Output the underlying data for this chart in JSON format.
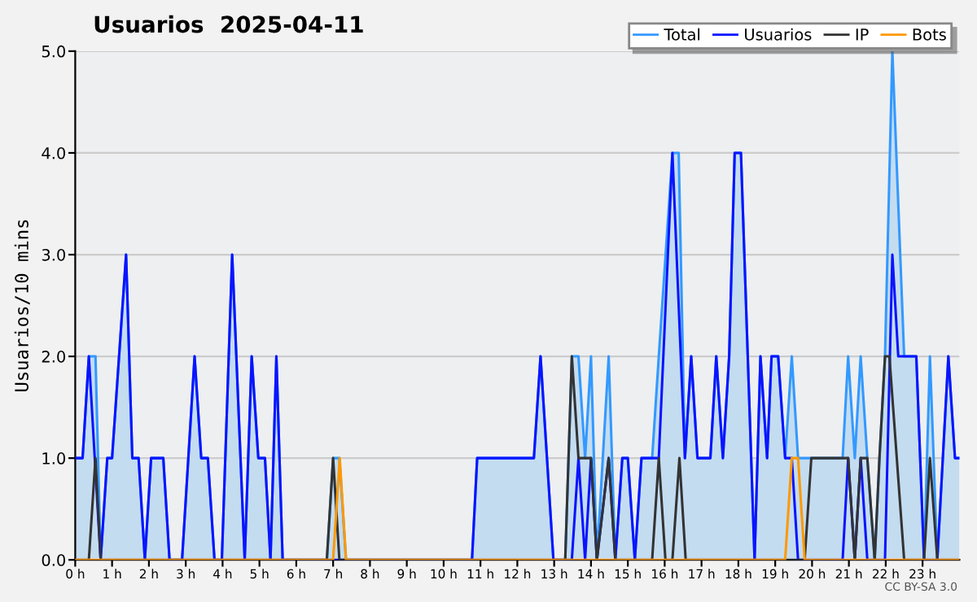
{
  "chart_data": {
    "type": "line",
    "title": "Usuarios  2025-04-11",
    "ylabel": "Usuarios/10 mins",
    "annotations": [
      "CC BY-SA 3.0"
    ],
    "xlim": [
      0,
      24
    ],
    "ylim": [
      0,
      5
    ],
    "xticks": [
      {
        "value": 0,
        "label": "0 h"
      },
      {
        "value": 1,
        "label": "1 h"
      },
      {
        "value": 2,
        "label": "2 h"
      },
      {
        "value": 3,
        "label": "3 h"
      },
      {
        "value": 4,
        "label": "4 h"
      },
      {
        "value": 5,
        "label": "5 h"
      },
      {
        "value": 6,
        "label": "6 h"
      },
      {
        "value": 7,
        "label": "7 h"
      },
      {
        "value": 8,
        "label": "8 h"
      },
      {
        "value": 9,
        "label": "9 h"
      },
      {
        "value": 10,
        "label": "10 h"
      },
      {
        "value": 11,
        "label": "11 h"
      },
      {
        "value": 12,
        "label": "12 h"
      },
      {
        "value": 13,
        "label": "13 h"
      },
      {
        "value": 14,
        "label": "14 h"
      },
      {
        "value": 15,
        "label": "15 h"
      },
      {
        "value": 16,
        "label": "16 h"
      },
      {
        "value": 17,
        "label": "17 h"
      },
      {
        "value": 18,
        "label": "18 h"
      },
      {
        "value": 19,
        "label": "19 h"
      },
      {
        "value": 20,
        "label": "20 h"
      },
      {
        "value": 21,
        "label": "21 h"
      },
      {
        "value": 22,
        "label": "22 h"
      },
      {
        "value": 23,
        "label": "23 h"
      }
    ],
    "yticks": [
      {
        "value": 0,
        "label": "0.0"
      },
      {
        "value": 1,
        "label": "1.0"
      },
      {
        "value": 2,
        "label": "2.0"
      },
      {
        "value": 3,
        "label": "3.0"
      },
      {
        "value": 4,
        "label": "4.0"
      },
      {
        "value": 5,
        "label": "5.0"
      }
    ],
    "grid": "y",
    "legend": "top right",
    "marker": "none",
    "line_style": "solid",
    "series": [
      {
        "name": "Total",
        "type": "area",
        "color": "#3399ff",
        "x": [
          0,
          0.2,
          0.37,
          0.55,
          0.69,
          0.87,
          1.0,
          1.38,
          1.55,
          1.72,
          1.89,
          2.06,
          2.39,
          2.56,
          2.9,
          3.24,
          3.42,
          3.6,
          3.78,
          3.98,
          4.26,
          4.6,
          4.79,
          4.97,
          5.15,
          5.3,
          5.46,
          5.63,
          6.83,
          7.0,
          7.17,
          7.35,
          10.77,
          10.91,
          12.45,
          12.63,
          12.98,
          13.3,
          13.48,
          13.66,
          13.84,
          14.0,
          14.16,
          14.48,
          14.66,
          14.85,
          15.0,
          15.19,
          15.37,
          15.66,
          15.84,
          16.21,
          16.38,
          16.55,
          16.72,
          16.89,
          17.24,
          17.4,
          17.58,
          17.75,
          17.9,
          18.07,
          18.44,
          18.6,
          18.78,
          18.9,
          19.08,
          19.27,
          19.45,
          19.62,
          20.83,
          20.98,
          21.16,
          21.32,
          21.5,
          21.7,
          21.83,
          21.98,
          22.18,
          22.5,
          22.83,
          23.04,
          23.2,
          23.4,
          23.7,
          23.88,
          24
        ],
        "values": [
          1,
          1,
          2,
          2,
          0,
          1,
          1,
          3,
          1,
          1,
          0,
          1,
          1,
          0,
          0,
          2,
          1,
          1,
          0,
          0,
          3,
          0,
          2,
          1,
          1,
          0,
          2,
          0,
          0,
          1,
          1,
          0,
          0,
          1,
          1,
          2,
          0,
          0,
          2,
          2,
          1,
          2,
          0,
          2,
          0,
          1,
          1,
          0,
          1,
          1,
          2,
          4,
          4,
          1,
          2,
          1,
          1,
          2,
          1,
          2,
          4,
          4,
          0,
          2,
          1,
          2,
          2,
          1,
          2,
          1,
          1,
          2,
          1,
          2,
          1,
          0,
          1,
          2,
          5,
          2,
          2,
          0,
          2,
          0,
          2,
          1,
          1
        ]
      },
      {
        "name": "Usuarios",
        "color": "#0a14ff",
        "x": [
          0,
          0.2,
          0.37,
          0.69,
          0.87,
          1.0,
          1.38,
          1.55,
          1.72,
          1.89,
          2.06,
          2.39,
          2.56,
          2.9,
          3.24,
          3.42,
          3.6,
          3.78,
          3.98,
          4.26,
          4.6,
          4.79,
          4.97,
          5.15,
          5.3,
          5.46,
          5.63,
          10.77,
          10.91,
          12.45,
          12.63,
          12.98,
          13.48,
          13.66,
          13.84,
          14.0,
          14.16,
          14.48,
          14.66,
          14.85,
          15.0,
          15.19,
          15.37,
          15.84,
          16.21,
          16.55,
          16.72,
          16.89,
          17.24,
          17.4,
          17.58,
          17.75,
          17.9,
          18.07,
          18.44,
          18.6,
          18.78,
          18.9,
          19.08,
          19.27,
          19.45,
          19.62,
          20.83,
          20.98,
          21.16,
          21.32,
          21.5,
          21.98,
          22.18,
          22.34,
          22.83,
          23.04,
          23.4,
          23.7,
          23.88,
          24
        ],
        "values": [
          1,
          1,
          2,
          0,
          1,
          1,
          3,
          1,
          1,
          0,
          1,
          1,
          0,
          0,
          2,
          1,
          1,
          0,
          0,
          3,
          0,
          2,
          1,
          1,
          0,
          2,
          0,
          0,
          1,
          1,
          2,
          0,
          0,
          1,
          0,
          1,
          0,
          1,
          0,
          1,
          1,
          0,
          1,
          1,
          4,
          1,
          2,
          1,
          1,
          2,
          1,
          2,
          4,
          4,
          0,
          2,
          1,
          2,
          2,
          1,
          1,
          0,
          0,
          1,
          0,
          1,
          0,
          0,
          3,
          2,
          2,
          0,
          0,
          2,
          1,
          1
        ]
      },
      {
        "name": "IP",
        "color": "#333333",
        "x": [
          0,
          0.37,
          0.55,
          0.69,
          6.83,
          7.0,
          7.17,
          13.3,
          13.48,
          13.66,
          14.0,
          14.16,
          14.48,
          14.66,
          15.66,
          15.84,
          16.02,
          16.21,
          16.4,
          16.57,
          19.8,
          19.98,
          20.98,
          21.16,
          21.32,
          21.5,
          21.7,
          21.83,
          21.98,
          22.1,
          22.5,
          23.04,
          23.2,
          23.4,
          24
        ],
        "values": [
          0,
          0,
          1,
          0,
          0,
          1,
          0,
          0,
          2,
          1,
          1,
          0,
          1,
          0,
          0,
          1,
          0,
          0,
          1,
          0,
          0,
          1,
          1,
          0,
          1,
          1,
          0,
          1,
          2,
          2,
          0,
          0,
          1,
          0,
          0
        ]
      },
      {
        "name": "Bots",
        "color": "#ff9900",
        "x": [
          0,
          7.0,
          7.18,
          7.35,
          19.27,
          19.45,
          19.62,
          19.8,
          24
        ],
        "values": [
          0,
          0,
          1,
          0,
          0,
          1,
          1,
          0,
          0
        ]
      }
    ]
  }
}
